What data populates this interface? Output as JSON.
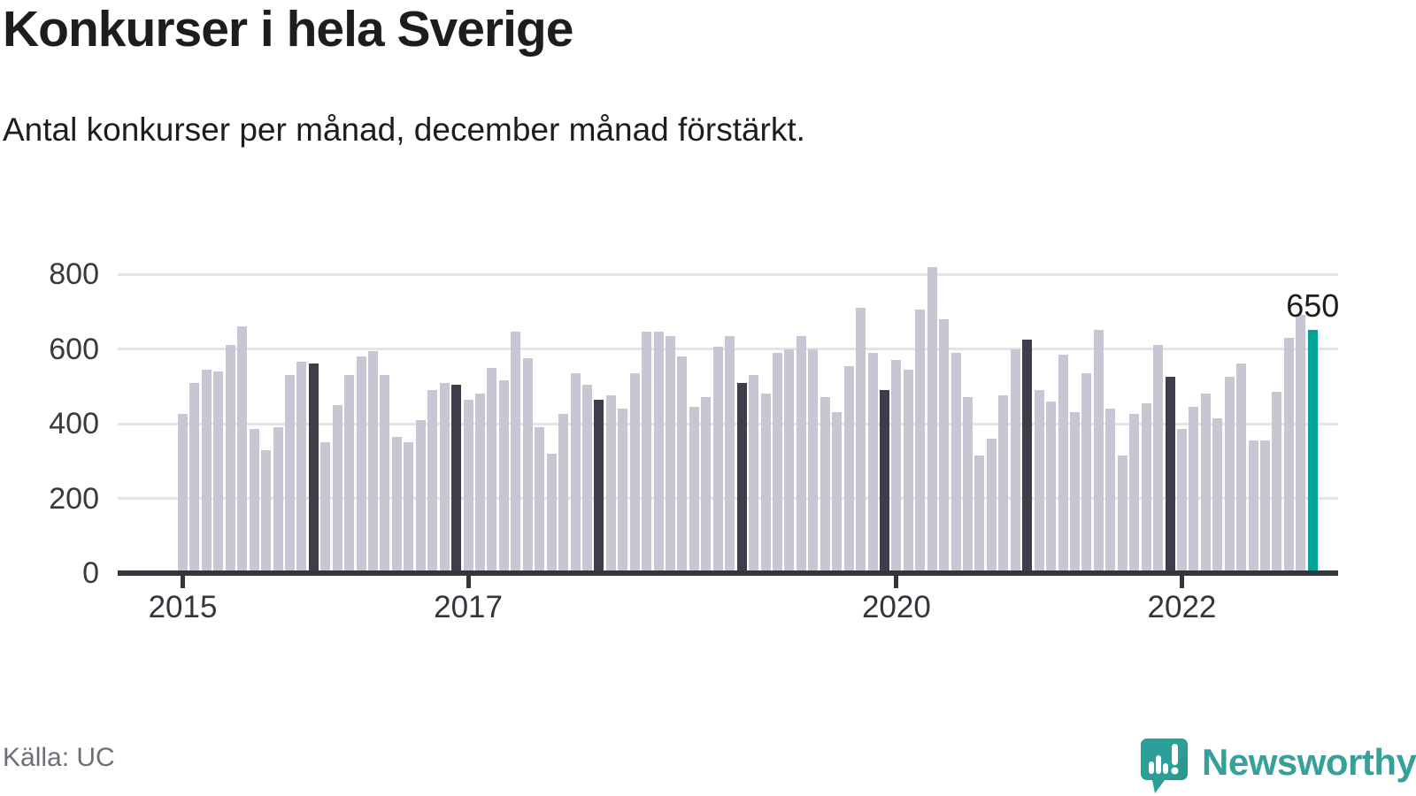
{
  "header": {
    "title": "Konkurser i hela Sverige",
    "subtitle": "Antal konkurser per månad, december månad förstärkt."
  },
  "chart_data": {
    "type": "bar",
    "title": "Konkurser i hela Sverige",
    "subtitle": "Antal konkurser per månad, december månad förstärkt.",
    "xlabel": "",
    "ylabel": "",
    "ylim": [
      0,
      850
    ],
    "y_ticks": [
      0,
      200,
      400,
      600,
      800
    ],
    "grid": "horizontal",
    "x_tick_labels": [
      "2015",
      "2017",
      "2020",
      "2022"
    ],
    "x_tick_month_indices": [
      0,
      24,
      60,
      84
    ],
    "period_start": "2015-01",
    "period_end": "2022-12",
    "emphasized_month": "december",
    "latest_bar": {
      "label": "650",
      "value": 650,
      "month": "2022-12"
    },
    "colors": {
      "bar": "#c8c6d2",
      "december_bar": "#3e3d4b",
      "latest_bar": "#00a398",
      "axis": "#35343c",
      "grid": "#e4e3e7",
      "annotation": "#1d1d1b"
    },
    "series": [
      {
        "year": 2015,
        "values": [
          425,
          510,
          545,
          540,
          610,
          660,
          385,
          330,
          390,
          530,
          565,
          560
        ]
      },
      {
        "year": 2016,
        "values": [
          350,
          450,
          530,
          580,
          595,
          530,
          365,
          350,
          410,
          490,
          510,
          505
        ]
      },
      {
        "year": 2017,
        "values": [
          465,
          480,
          550,
          515,
          645,
          575,
          390,
          320,
          425,
          535,
          505,
          465
        ]
      },
      {
        "year": 2018,
        "values": [
          475,
          440,
          535,
          645,
          645,
          635,
          580,
          445,
          470,
          605,
          635,
          510
        ]
      },
      {
        "year": 2019,
        "values": [
          530,
          480,
          590,
          600,
          635,
          600,
          470,
          430,
          555,
          710,
          590,
          490
        ]
      },
      {
        "year": 2020,
        "values": [
          570,
          545,
          705,
          820,
          680,
          590,
          470,
          315,
          360,
          475,
          600,
          625
        ]
      },
      {
        "year": 2021,
        "values": [
          490,
          460,
          585,
          430,
          535,
          650,
          440,
          315,
          425,
          455,
          610,
          525
        ]
      },
      {
        "year": 2022,
        "values": [
          385,
          445,
          480,
          415,
          525,
          560,
          355,
          355,
          485,
          630,
          690,
          650
        ]
      }
    ]
  },
  "footer": {
    "source": "Källa: UC",
    "brand": "Newsworthy"
  }
}
